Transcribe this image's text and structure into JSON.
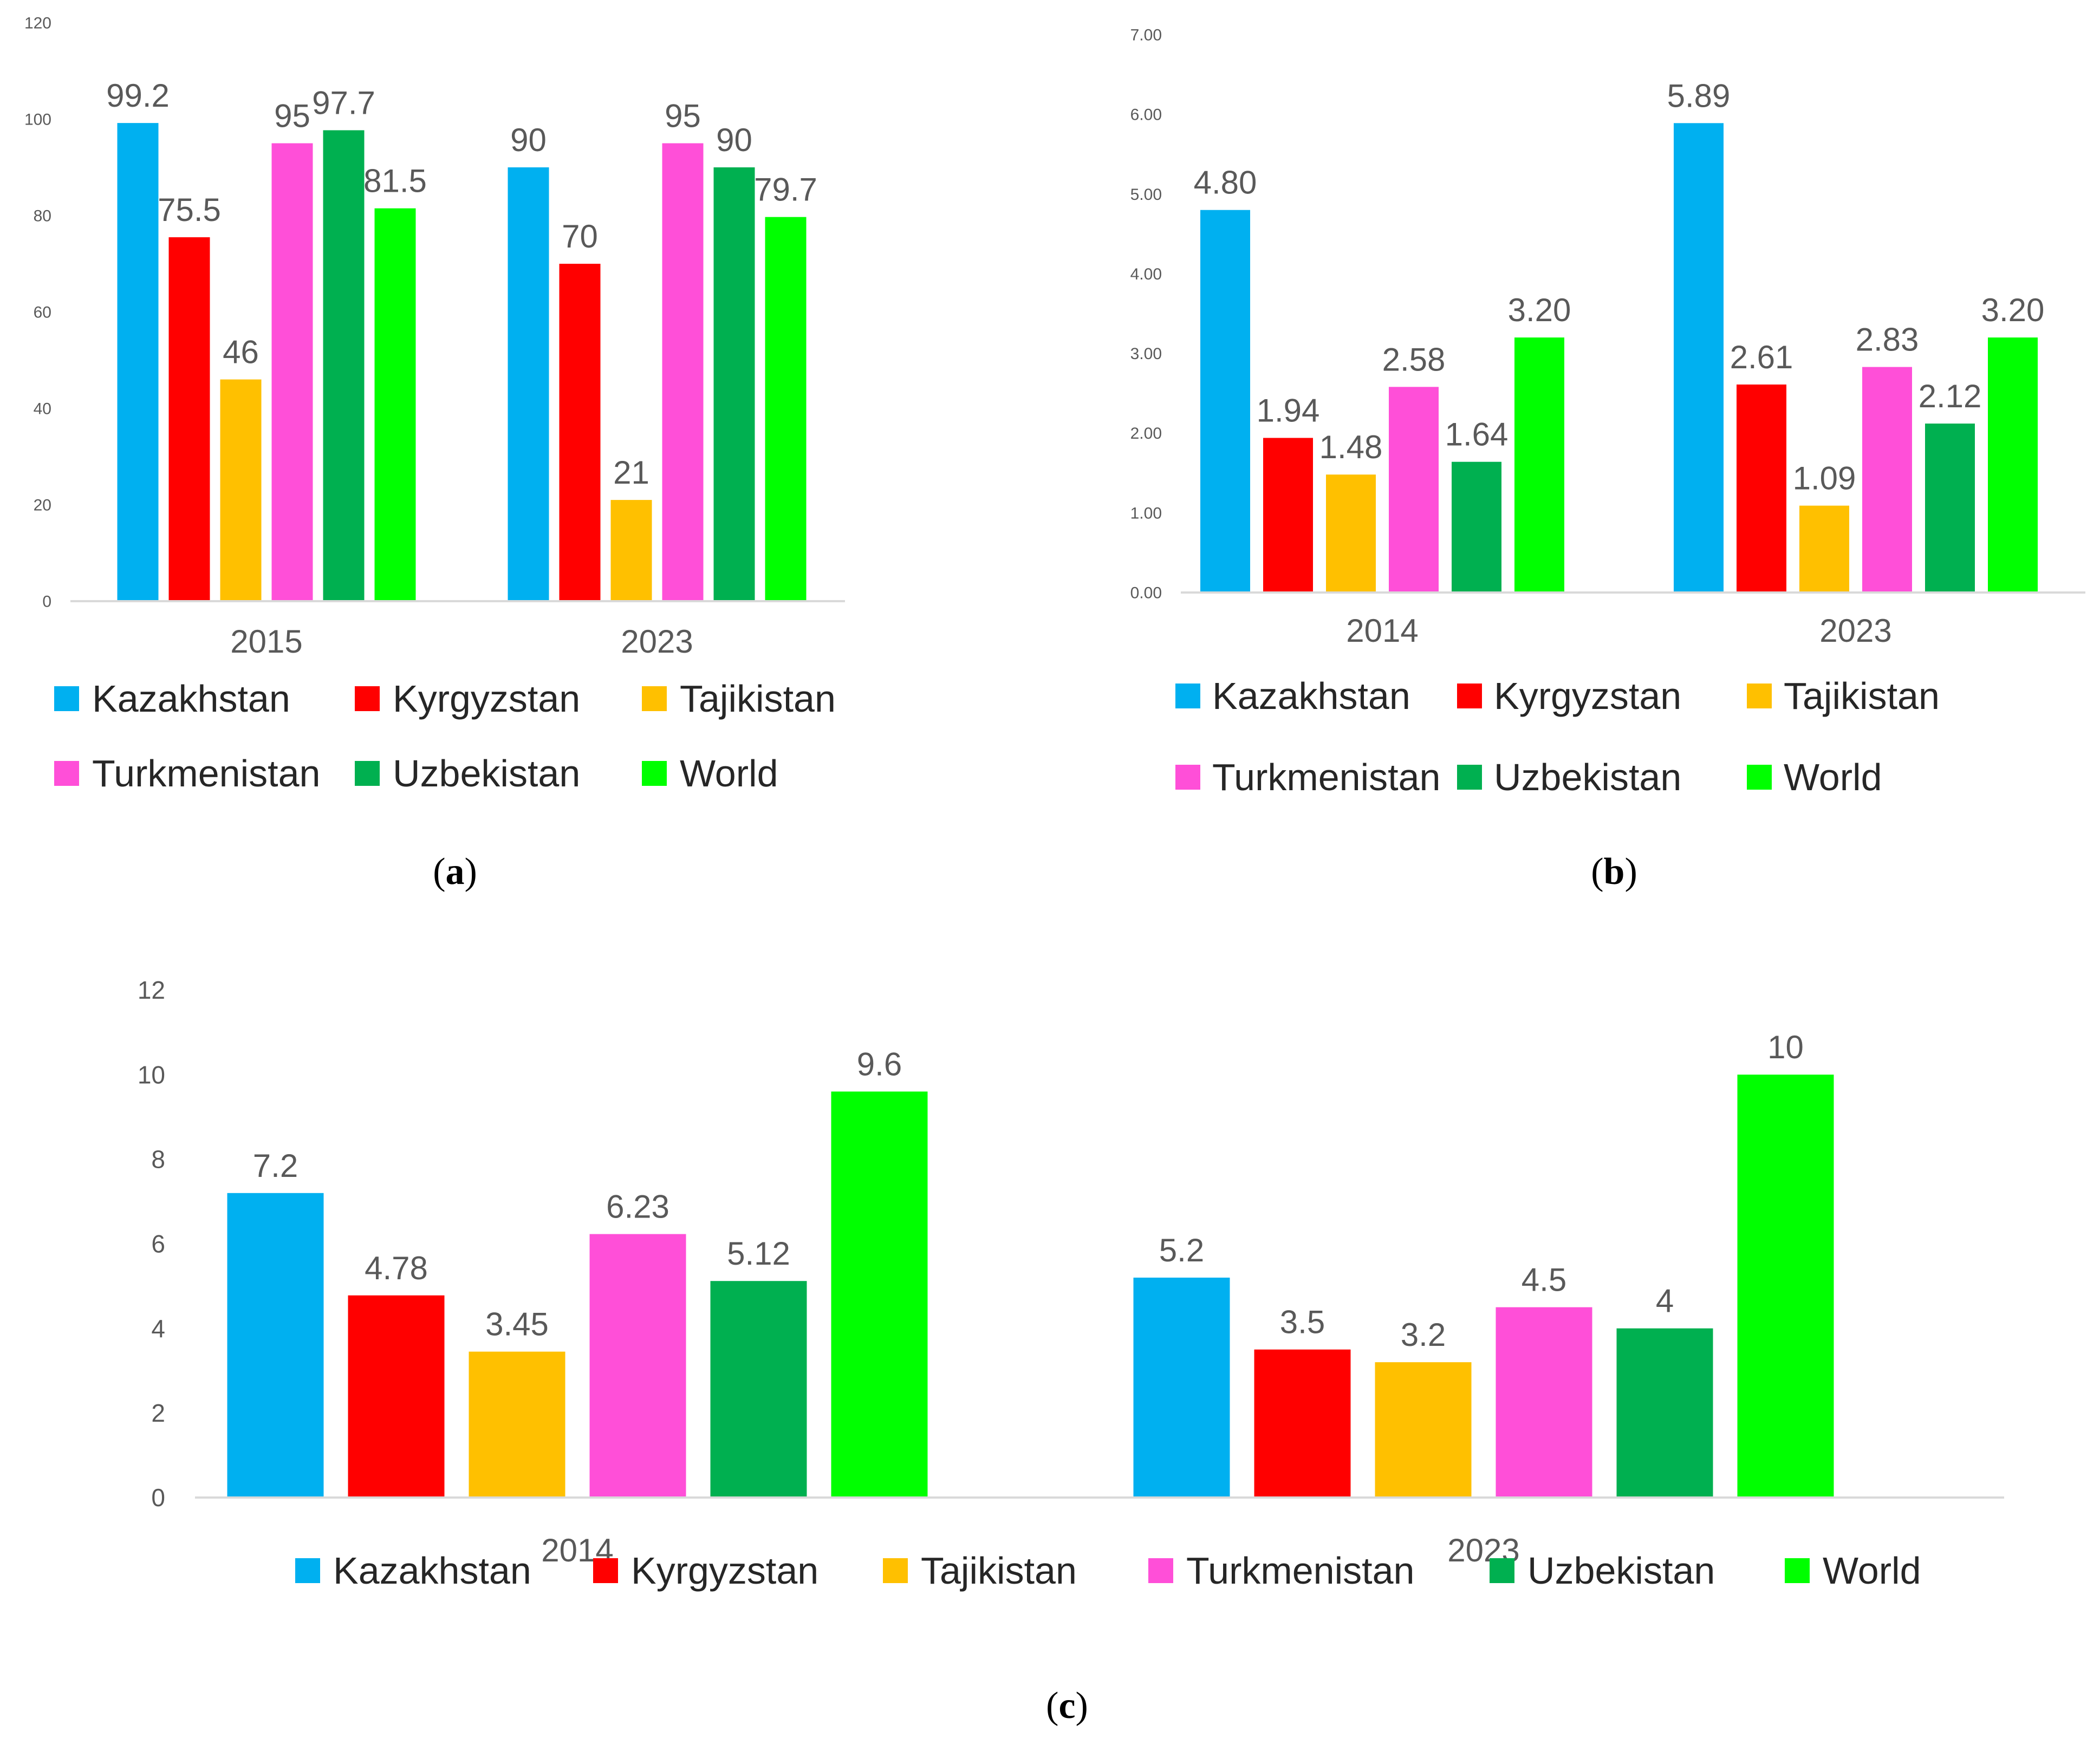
{
  "colors": {
    "Kazakhstan": "#00B0F0",
    "Kyrgyzstan": "#FF0000",
    "Tajikistan": "#FFC000",
    "Turkmenistan": "#FF4FD8",
    "Uzbekistan": "#00B050",
    "World": "#00FF00"
  },
  "chart_data": [
    {
      "id": "a",
      "type": "bar",
      "caption": "a",
      "categories": [
        "2015",
        "2023"
      ],
      "series": [
        {
          "name": "Kazakhstan",
          "values": [
            99.2,
            90
          ]
        },
        {
          "name": "Kyrgyzstan",
          "values": [
            75.5,
            70
          ]
        },
        {
          "name": "Tajikistan",
          "values": [
            46,
            21
          ]
        },
        {
          "name": "Turkmenistan",
          "values": [
            95,
            95
          ]
        },
        {
          "name": "Uzbekistan",
          "values": [
            97.7,
            90
          ]
        },
        {
          "name": "World",
          "values": [
            81.5,
            79.7
          ]
        }
      ],
      "value_labels": [
        [
          "99.2",
          "90"
        ],
        [
          "75.5",
          "70"
        ],
        [
          "46",
          "21"
        ],
        [
          "95",
          "95"
        ],
        [
          "97.7",
          "90"
        ],
        [
          "81.5",
          "79.7"
        ]
      ],
      "yticks": [
        "0",
        "20",
        "40",
        "60",
        "80",
        "100",
        "120"
      ],
      "ylim": [
        0,
        120
      ],
      "legend": [
        "Kazakhstan",
        "Kyrgyzstan",
        "Tajikistan",
        "Turkmenistan",
        "Uzbekistan",
        "World"
      ],
      "legend_position": "bottom",
      "grid": false
    },
    {
      "id": "b",
      "type": "bar",
      "caption": "b",
      "categories": [
        "2014",
        "2023"
      ],
      "series": [
        {
          "name": "Kazakhstan",
          "values": [
            4.8,
            5.89
          ]
        },
        {
          "name": "Kyrgyzstan",
          "values": [
            1.94,
            2.61
          ]
        },
        {
          "name": "Tajikistan",
          "values": [
            1.48,
            1.09
          ]
        },
        {
          "name": "Turkmenistan",
          "values": [
            2.58,
            2.83
          ]
        },
        {
          "name": "Uzbekistan",
          "values": [
            1.64,
            2.12
          ]
        },
        {
          "name": "World",
          "values": [
            3.2,
            3.2
          ]
        }
      ],
      "value_labels": [
        [
          "4.80",
          "5.89"
        ],
        [
          "1.94",
          "2.61"
        ],
        [
          "1.48",
          "1.09"
        ],
        [
          "2.58",
          "2.83"
        ],
        [
          "1.64",
          "2.12"
        ],
        [
          "3.20",
          "3.20"
        ]
      ],
      "yticks": [
        "0.00",
        "1.00",
        "2.00",
        "3.00",
        "4.00",
        "5.00",
        "6.00",
        "7.00"
      ],
      "ylim": [
        0,
        7
      ],
      "legend": [
        "Kazakhstan",
        "Kyrgyzstan",
        "Tajikistan",
        "Turkmenistan",
        "Uzbekistan",
        "World"
      ],
      "legend_position": "bottom",
      "grid": false
    },
    {
      "id": "c",
      "type": "bar",
      "caption": "c",
      "categories": [
        "2014",
        "2023"
      ],
      "series": [
        {
          "name": "Kazakhstan",
          "values": [
            7.2,
            5.2
          ]
        },
        {
          "name": "Kyrgyzstan",
          "values": [
            4.78,
            3.5
          ]
        },
        {
          "name": "Tajikistan",
          "values": [
            3.45,
            3.2
          ]
        },
        {
          "name": "Turkmenistan",
          "values": [
            6.23,
            4.5
          ]
        },
        {
          "name": "Uzbekistan",
          "values": [
            5.12,
            4
          ]
        },
        {
          "name": "World",
          "values": [
            9.6,
            10
          ]
        }
      ],
      "value_labels": [
        [
          "7.2",
          "5.2"
        ],
        [
          "4.78",
          "3.5"
        ],
        [
          "3.45",
          "3.2"
        ],
        [
          "6.23",
          "4.5"
        ],
        [
          "5.12",
          "4"
        ],
        [
          "9.6",
          "10"
        ]
      ],
      "yticks": [
        "0",
        "2",
        "4",
        "6",
        "8",
        "10",
        "12"
      ],
      "ylim": [
        0,
        12
      ],
      "legend": [
        "Kazakhstan",
        "Kyrgyzstan",
        "Tajikistan",
        "Turkmenistan",
        "Uzbekistan",
        "World"
      ],
      "legend_position": "bottom",
      "grid": false
    }
  ]
}
